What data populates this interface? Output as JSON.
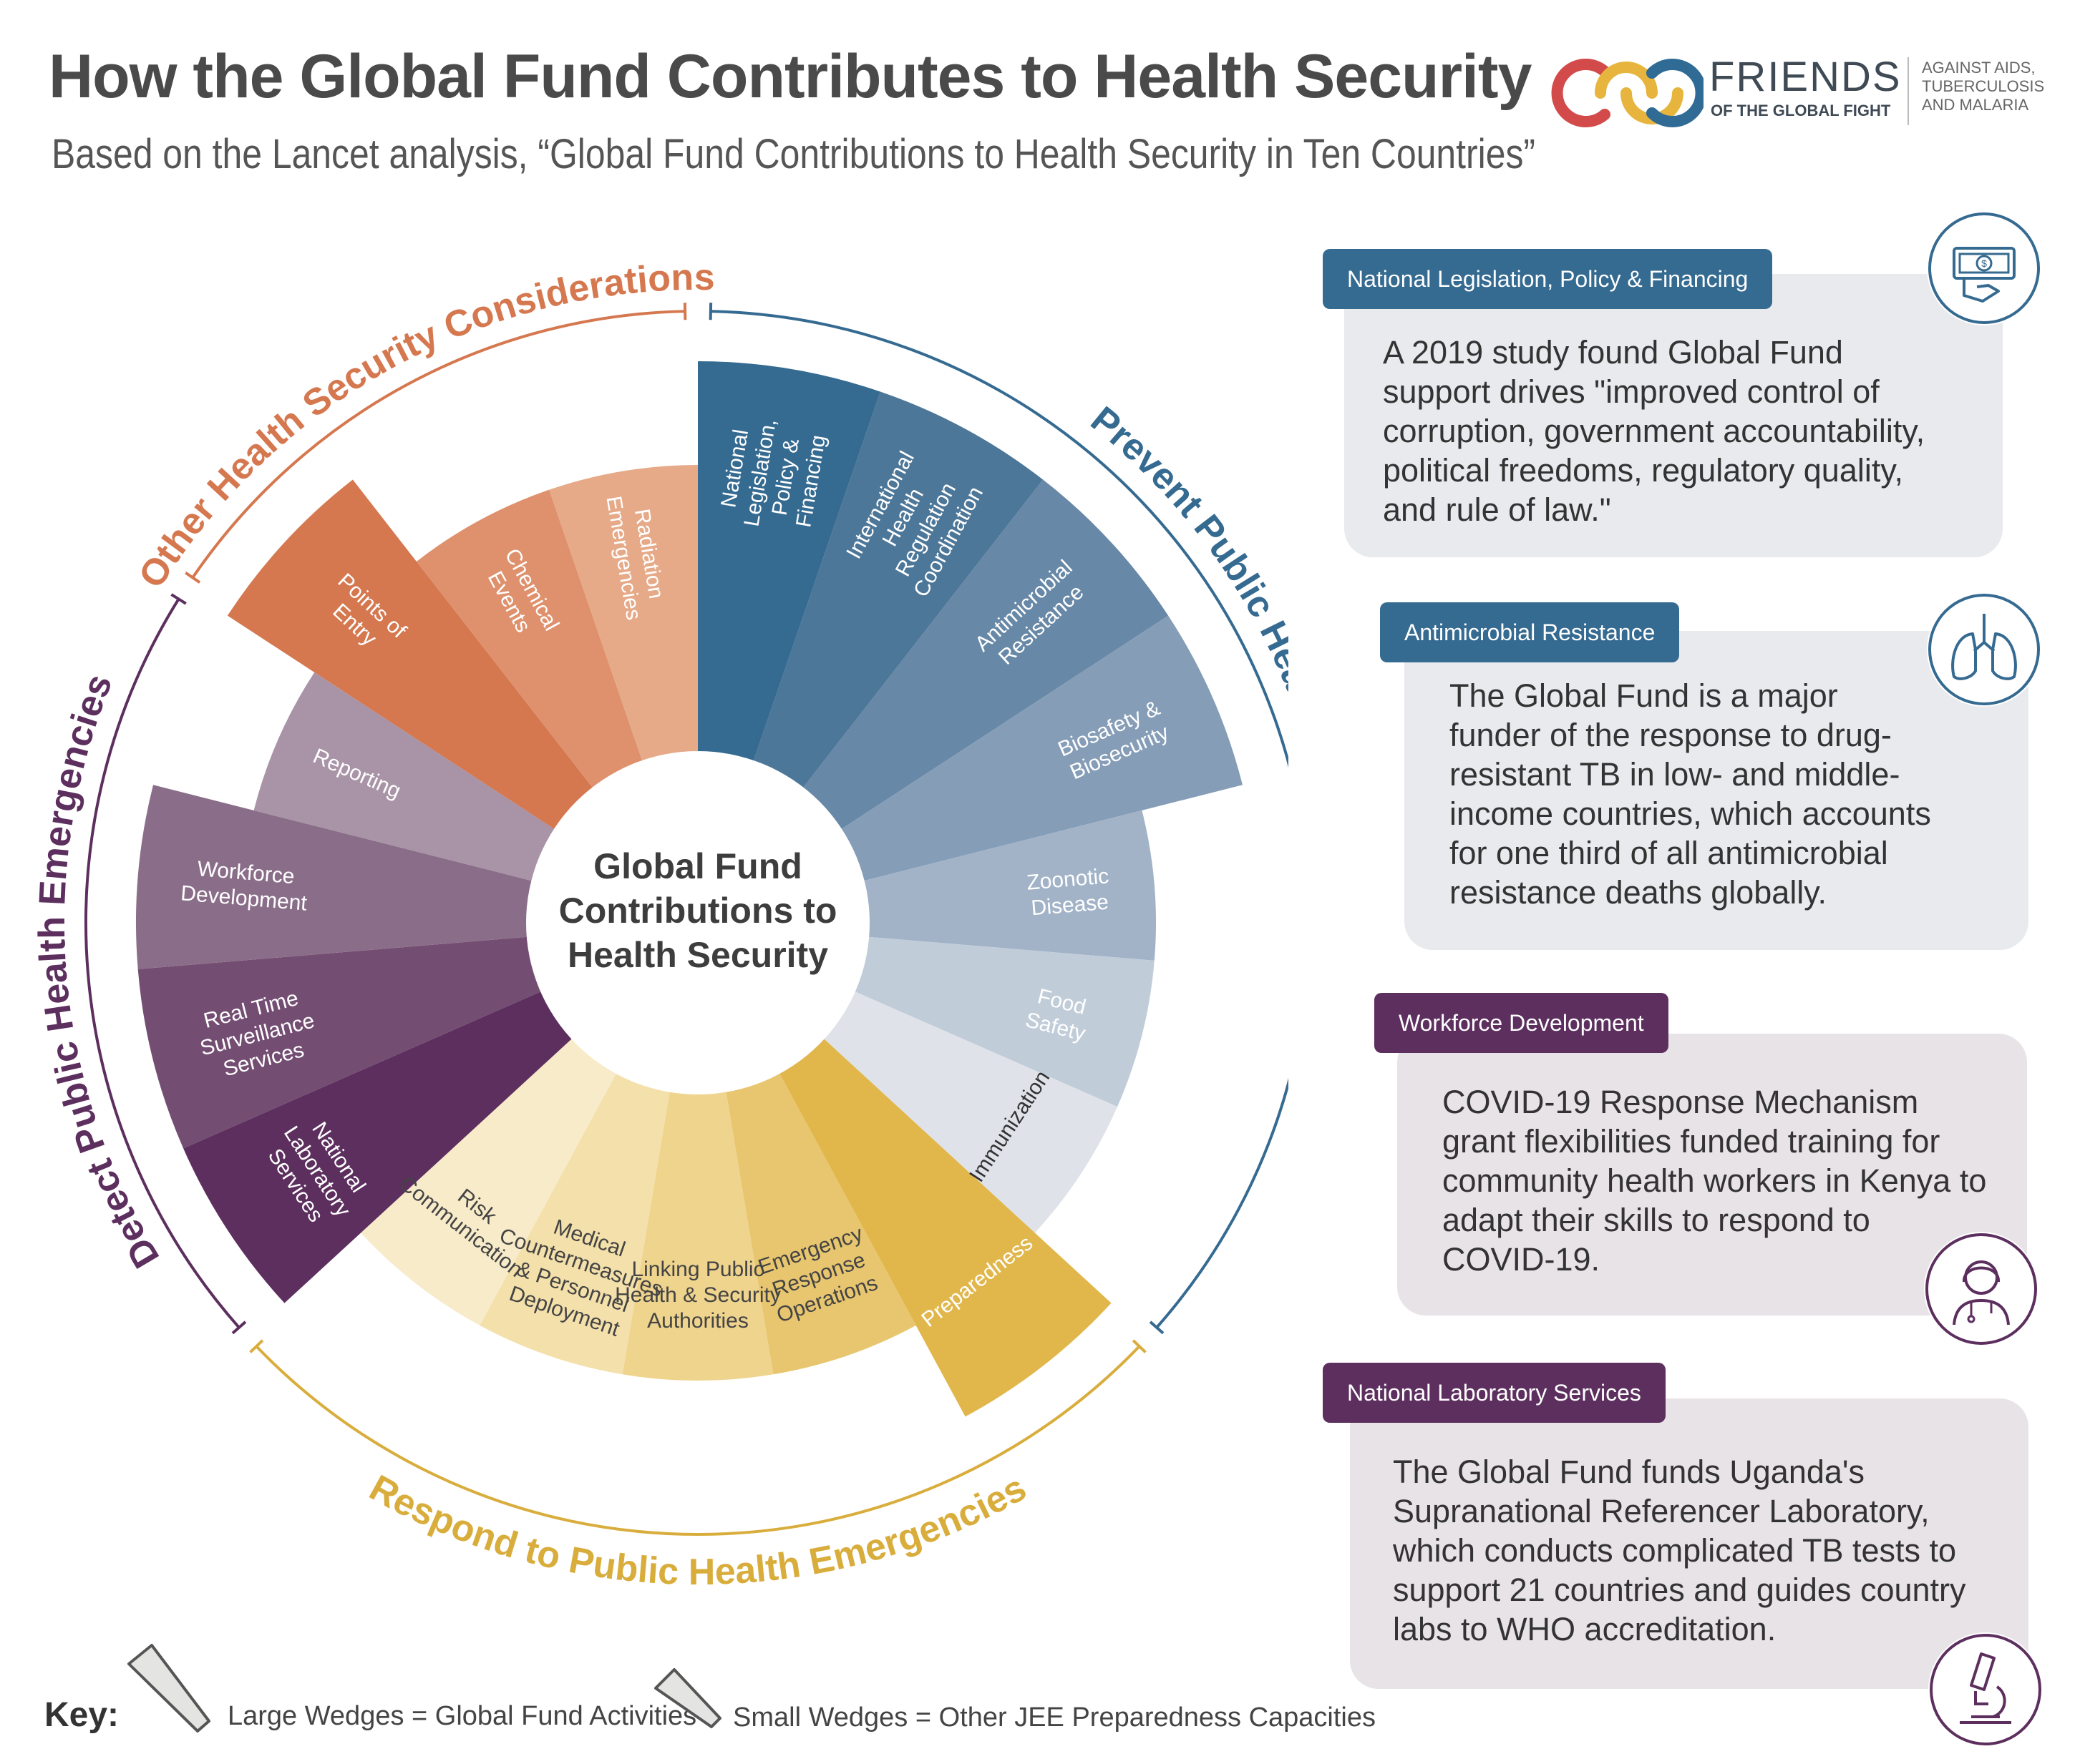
{
  "header": {
    "title": "How the Global Fund Contributes to Health Security",
    "subtitle": "Based on the Lancet analysis, “Global Fund Contributions to Health Security in Ten Countries”"
  },
  "logo": {
    "name": "FRIENDS",
    "subname": "OF THE GLOBAL FIGHT",
    "tagline": [
      "AGAINST AIDS,",
      "TUBERCULOSIS",
      "AND MALARIA"
    ]
  },
  "wheel": {
    "center_label": [
      "Global Fund",
      "Contributions to",
      "Health Security"
    ],
    "categories": [
      {
        "name": "Prevent Public Health Emergencies",
        "color": "#356a91"
      },
      {
        "name": "Respond to Public Health Emergencies",
        "color": "#d9ad3c"
      },
      {
        "name": "Detect Public Health Emergencies",
        "color": "#5c2f5e"
      },
      {
        "name": "Other Health Security Considerations",
        "color": "#d5784f"
      }
    ],
    "wedges": [
      {
        "label": [
          "National",
          "Legislation,",
          "Policy &",
          "Financing"
        ],
        "size": "large",
        "color": "#356a91",
        "text": "#ffffff"
      },
      {
        "label": [
          "International",
          "Health",
          "Regulation",
          "Coordination"
        ],
        "size": "large",
        "color": "#4d7799",
        "text": "#ffffff"
      },
      {
        "label": [
          "Antimicrobial",
          "Resistance"
        ],
        "size": "large",
        "color": "#6788a6",
        "text": "#ffffff"
      },
      {
        "label": [
          "Biosafety &",
          "Biosecurity"
        ],
        "size": "large",
        "color": "#859db7",
        "text": "#ffffff"
      },
      {
        "label": [
          "Zoonotic",
          "Disease"
        ],
        "size": "small",
        "color": "#a2b3c8",
        "text": "#ffffff"
      },
      {
        "label": [
          "Food",
          "Safety"
        ],
        "size": "small",
        "color": "#c1ccd9",
        "text": "#ffffff"
      },
      {
        "label": [
          "Immunization"
        ],
        "size": "small",
        "color": "#dfe3e9",
        "text": "#333333"
      },
      {
        "label": [
          "Preparedness"
        ],
        "size": "large",
        "color": "#e1b74c",
        "text": "#ffffff"
      },
      {
        "label": [
          "Emergency",
          "Response",
          "Operations"
        ],
        "size": "small",
        "color": "#e8c66f",
        "text": "#444444"
      },
      {
        "label": [
          "Linking Public",
          "Health & Security",
          "Authorities"
        ],
        "size": "small",
        "color": "#efd48d",
        "text": "#444444"
      },
      {
        "label": [
          "Medical",
          "Countermeasures",
          "& Personnel",
          "Deployment"
        ],
        "size": "small",
        "color": "#f4e0aa",
        "text": "#444444"
      },
      {
        "label": [
          "Risk",
          "Communication"
        ],
        "size": "small",
        "color": "#f8ebca",
        "text": "#444444"
      },
      {
        "label": [
          "National",
          "Laboratory",
          "Services"
        ],
        "size": "large",
        "color": "#5c2f5e",
        "text": "#ffffff"
      },
      {
        "label": [
          "Real Time",
          "Surveillance",
          "Services"
        ],
        "size": "large",
        "color": "#734d72",
        "text": "#ffffff"
      },
      {
        "label": [
          "Workforce",
          "Development"
        ],
        "size": "large",
        "color": "#8a6e89",
        "text": "#ffffff"
      },
      {
        "label": [
          "Reporting"
        ],
        "size": "small",
        "color": "#a994a7",
        "text": "#ffffff"
      },
      {
        "label": [
          "Points of",
          "Entry"
        ],
        "size": "large",
        "color": "#d5784f",
        "text": "#ffffff"
      },
      {
        "label": [
          "Chemical",
          "Events"
        ],
        "size": "small",
        "color": "#de916c",
        "text": "#ffffff"
      },
      {
        "label": [
          "Radiation",
          "Emergencies"
        ],
        "size": "small",
        "color": "#e6aa88",
        "text": "#ffffff"
      }
    ]
  },
  "cards": [
    {
      "tab": "National Legislation, Policy & Financing",
      "tab_color": "#356a91",
      "bg": "#e8eaed",
      "icon": "money-hand-icon",
      "text": [
        "A 2019 study found Global Fund",
        "support drives \"improved control of",
        "corruption, government accountability,",
        "political freedoms, regulatory quality,",
        "and rule of law.\""
      ]
    },
    {
      "tab": "Antimicrobial Resistance",
      "tab_color": "#356a91",
      "bg": "#e8eaed",
      "icon": "lungs-icon",
      "text": [
        "The Global Fund is a major",
        "funder of the response to drug-",
        "resistant TB in low- and middle-",
        "income countries, which accounts",
        "for one third of all antimicrobial",
        "resistance deaths globally."
      ]
    },
    {
      "tab": "Workforce Development",
      "tab_color": "#5c2f5e",
      "bg": "#e8e3e6",
      "icon": "health-worker-icon",
      "text": [
        "COVID-19 Response Mechanism",
        "grant flexibilities funded training for",
        "community health workers in Kenya to",
        "adapt their skills to respond to",
        "COVID-19."
      ]
    },
    {
      "tab": "National Laboratory Services",
      "tab_color": "#5c2f5e",
      "bg": "#e8e3e6",
      "icon": "microscope-icon",
      "text": [
        "The Global Fund funds Uganda's",
        "Supranational Referencer Laboratory,",
        "which conducts complicated TB tests to",
        "support 21 countries and guides country",
        "labs to WHO accreditation."
      ]
    }
  ],
  "key": {
    "title": "Key:",
    "large": "Large Wedges = Global Fund Activities",
    "small": "Small Wedges = Other JEE Preparedness Capacities"
  }
}
